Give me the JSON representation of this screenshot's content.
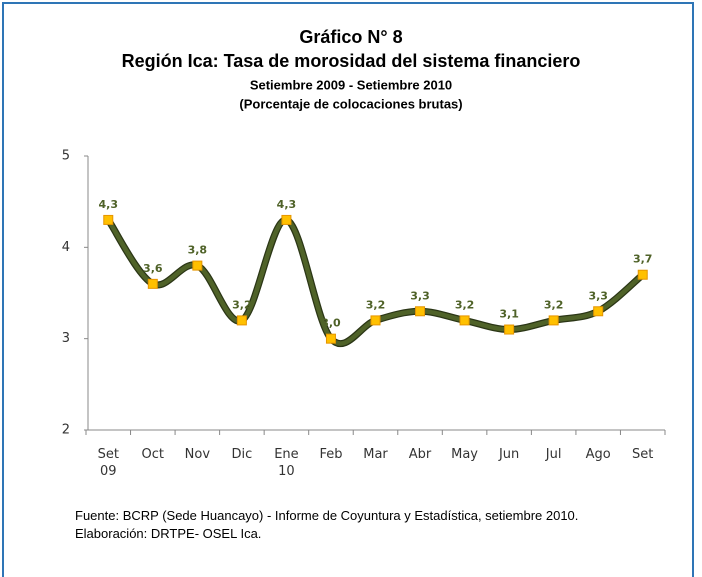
{
  "chart_data": {
    "type": "line",
    "title": "Gráfico N° 8",
    "subtitle": "Región Ica: Tasa de morosidad del sistema financiero",
    "period": "Setiembre 2009 - Setiembre 2010",
    "unit_note": "(Porcentaje de colocaciones brutas)",
    "categories": [
      "Set\n09",
      "Oct",
      "Nov",
      "Dic",
      "Ene\n10",
      "Feb",
      "Mar",
      "Abr",
      "May",
      "Jun",
      "Jul",
      "Ago",
      "Set"
    ],
    "values": [
      4.3,
      3.6,
      3.8,
      3.2,
      4.3,
      3.0,
      3.2,
      3.3,
      3.2,
      3.1,
      3.2,
      3.3,
      3.7
    ],
    "value_labels": [
      "4,3",
      "3,6",
      "3,8",
      "3,2",
      "4,3",
      "3,0",
      "3,2",
      "3,3",
      "3,2",
      "3,1",
      "3,2",
      "3,3",
      "3,7"
    ],
    "color": "#4f6228",
    "marker_color": "#ffc000",
    "ylim": [
      2,
      5
    ],
    "yticks": [
      2,
      3,
      4,
      5
    ],
    "grid": false
  },
  "footer": {
    "source": "Fuente: BCRP (Sede Huancayo) - Informe de Coyuntura y Estadística, setiembre 2010.",
    "credit": "Elaboración: DRTPE- OSEL Ica."
  }
}
